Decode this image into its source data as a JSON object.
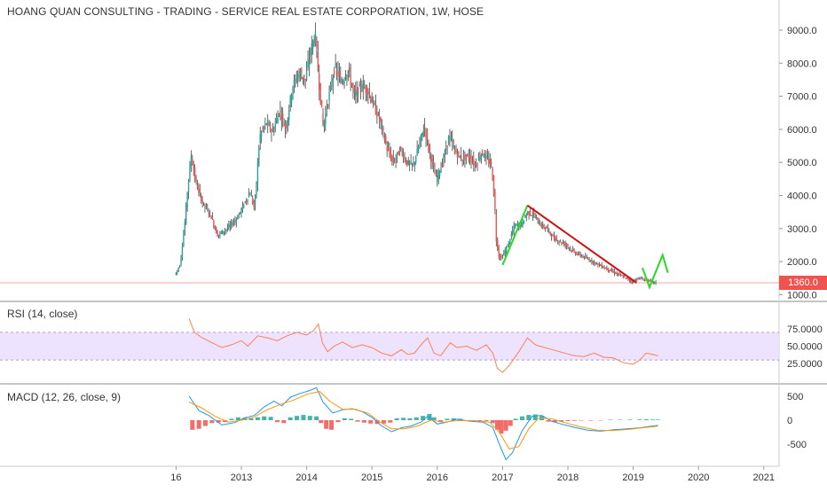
{
  "chart_data": {
    "type": "candlestick",
    "title": "HOANG QUAN CONSULTING - TRADING - SERVICE REAL ESTATE CORPORATION, 1W, HOSE",
    "price_axis": {
      "ticks": [
        "9000.0",
        "8000.0",
        "7000.0",
        "6000.0",
        "5000.0",
        "4000.0",
        "3000.0",
        "2000.0",
        "1000.0"
      ],
      "tick_values": [
        9000,
        8000,
        7000,
        6000,
        5000,
        4000,
        3000,
        2000,
        1000
      ],
      "ylim": [
        1000,
        9500
      ]
    },
    "last_price": {
      "label": "1360.0",
      "value": 1360,
      "color": "#ef5350"
    },
    "x_axis": {
      "ticks": [
        "16",
        "2013",
        "2014",
        "2015",
        "2016",
        "2017",
        "2018",
        "2019",
        "2020",
        "2021"
      ],
      "tick_values": [
        2012.0,
        2013,
        2014,
        2015,
        2016,
        2017,
        2018,
        2019,
        2020,
        2021
      ]
    },
    "price_path": [
      [
        2012.0,
        1600
      ],
      [
        2012.08,
        1900
      ],
      [
        2012.15,
        3100
      ],
      [
        2012.2,
        4300
      ],
      [
        2012.25,
        5200
      ],
      [
        2012.32,
        4400
      ],
      [
        2012.42,
        3800
      ],
      [
        2012.55,
        3400
      ],
      [
        2012.65,
        2800
      ],
      [
        2012.8,
        3000
      ],
      [
        2012.95,
        3300
      ],
      [
        2013.05,
        3700
      ],
      [
        2013.15,
        4100
      ],
      [
        2013.22,
        3600
      ],
      [
        2013.3,
        5800
      ],
      [
        2013.4,
        6200
      ],
      [
        2013.5,
        5900
      ],
      [
        2013.6,
        6600
      ],
      [
        2013.7,
        6000
      ],
      [
        2013.8,
        7300
      ],
      [
        2013.9,
        7700
      ],
      [
        2014.0,
        7500
      ],
      [
        2014.07,
        8300
      ],
      [
        2014.15,
        8900
      ],
      [
        2014.2,
        7600
      ],
      [
        2014.27,
        6100
      ],
      [
        2014.35,
        6900
      ],
      [
        2014.45,
        7900
      ],
      [
        2014.55,
        7400
      ],
      [
        2014.65,
        7800
      ],
      [
        2014.75,
        7000
      ],
      [
        2014.85,
        7300
      ],
      [
        2014.95,
        7200
      ],
      [
        2015.05,
        6700
      ],
      [
        2015.15,
        6200
      ],
      [
        2015.25,
        5400
      ],
      [
        2015.35,
        5000
      ],
      [
        2015.45,
        5400
      ],
      [
        2015.55,
        5000
      ],
      [
        2015.65,
        4900
      ],
      [
        2015.75,
        5600
      ],
      [
        2015.82,
        6100
      ],
      [
        2015.9,
        5300
      ],
      [
        2016.0,
        4500
      ],
      [
        2016.1,
        5000
      ],
      [
        2016.2,
        5800
      ],
      [
        2016.3,
        5300
      ],
      [
        2016.4,
        5100
      ],
      [
        2016.5,
        5200
      ],
      [
        2016.6,
        4900
      ],
      [
        2016.7,
        5300
      ],
      [
        2016.78,
        5100
      ],
      [
        2016.85,
        4900
      ],
      [
        2016.9,
        3700
      ],
      [
        2016.92,
        2700
      ],
      [
        2016.96,
        2200
      ],
      [
        2017.0,
        2100
      ],
      [
        2017.1,
        2500
      ],
      [
        2017.2,
        3100
      ],
      [
        2017.3,
        3100
      ],
      [
        2017.4,
        3500
      ],
      [
        2017.5,
        3400
      ],
      [
        2017.6,
        3100
      ],
      [
        2017.7,
        3000
      ],
      [
        2017.8,
        2700
      ],
      [
        2017.9,
        2600
      ],
      [
        2018.0,
        2500
      ],
      [
        2018.1,
        2300
      ],
      [
        2018.2,
        2200
      ],
      [
        2018.3,
        2100
      ],
      [
        2018.4,
        2000
      ],
      [
        2018.5,
        1900
      ],
      [
        2018.6,
        1800
      ],
      [
        2018.7,
        1700
      ],
      [
        2018.8,
        1600
      ],
      [
        2018.9,
        1500
      ],
      [
        2019.0,
        1400
      ],
      [
        2019.1,
        1500
      ],
      [
        2019.2,
        1450
      ],
      [
        2019.3,
        1400
      ],
      [
        2019.35,
        1360
      ]
    ],
    "annotations": {
      "green_trend": [
        [
          2017.0,
          1900
        ],
        [
          2017.38,
          3700
        ]
      ],
      "red_trend": [
        [
          2017.38,
          3700
        ],
        [
          2019.05,
          1360
        ]
      ],
      "green_arrow": [
        [
          2019.25,
          1600
        ],
        [
          2019.45,
          2200
        ]
      ]
    },
    "rsi": {
      "label": "RSI (14, close)",
      "ticks": [
        "75.0000",
        "50.0000",
        "25.0000"
      ],
      "tick_values": [
        75,
        50,
        25
      ],
      "band": [
        30,
        70
      ],
      "ylim": [
        10,
        95
      ],
      "values": [
        [
          2012.2,
          90
        ],
        [
          2012.28,
          70
        ],
        [
          2012.4,
          62
        ],
        [
          2012.55,
          55
        ],
        [
          2012.7,
          48
        ],
        [
          2012.85,
          52
        ],
        [
          2013.0,
          58
        ],
        [
          2013.1,
          50
        ],
        [
          2013.25,
          65
        ],
        [
          2013.4,
          62
        ],
        [
          2013.55,
          58
        ],
        [
          2013.7,
          65
        ],
        [
          2013.85,
          70
        ],
        [
          2014.0,
          66
        ],
        [
          2014.1,
          72
        ],
        [
          2014.18,
          82
        ],
        [
          2014.24,
          55
        ],
        [
          2014.32,
          42
        ],
        [
          2014.42,
          50
        ],
        [
          2014.55,
          56
        ],
        [
          2014.7,
          48
        ],
        [
          2014.85,
          52
        ],
        [
          2015.0,
          48
        ],
        [
          2015.15,
          40
        ],
        [
          2015.3,
          36
        ],
        [
          2015.45,
          45
        ],
        [
          2015.55,
          38
        ],
        [
          2015.65,
          40
        ],
        [
          2015.78,
          55
        ],
        [
          2015.85,
          62
        ],
        [
          2015.95,
          40
        ],
        [
          2016.05,
          36
        ],
        [
          2016.2,
          55
        ],
        [
          2016.3,
          48
        ],
        [
          2016.45,
          50
        ],
        [
          2016.6,
          44
        ],
        [
          2016.75,
          52
        ],
        [
          2016.85,
          40
        ],
        [
          2016.92,
          18
        ],
        [
          2017.0,
          12
        ],
        [
          2017.1,
          22
        ],
        [
          2017.25,
          42
        ],
        [
          2017.38,
          62
        ],
        [
          2017.5,
          52
        ],
        [
          2017.65,
          48
        ],
        [
          2017.8,
          44
        ],
        [
          2017.95,
          40
        ],
        [
          2018.1,
          36
        ],
        [
          2018.25,
          35
        ],
        [
          2018.4,
          40
        ],
        [
          2018.55,
          34
        ],
        [
          2018.7,
          33
        ],
        [
          2018.85,
          26
        ],
        [
          2019.0,
          24
        ],
        [
          2019.1,
          30
        ],
        [
          2019.2,
          40
        ],
        [
          2019.3,
          38
        ],
        [
          2019.38,
          36
        ]
      ]
    },
    "macd": {
      "label": "MACD (12, 26, close, 9)",
      "ticks": [
        "500",
        "0",
        "-500"
      ],
      "tick_values": [
        500,
        0,
        -500
      ],
      "ylim": [
        -900,
        900
      ],
      "macd_line": [
        [
          2012.2,
          500
        ],
        [
          2012.35,
          200
        ],
        [
          2012.5,
          100
        ],
        [
          2012.7,
          -100
        ],
        [
          2012.9,
          -50
        ],
        [
          2013.05,
          50
        ],
        [
          2013.2,
          100
        ],
        [
          2013.35,
          280
        ],
        [
          2013.5,
          400
        ],
        [
          2013.62,
          300
        ],
        [
          2013.75,
          480
        ],
        [
          2013.9,
          560
        ],
        [
          2014.05,
          620
        ],
        [
          2014.15,
          680
        ],
        [
          2014.25,
          380
        ],
        [
          2014.4,
          150
        ],
        [
          2014.55,
          220
        ],
        [
          2014.7,
          240
        ],
        [
          2014.85,
          180
        ],
        [
          2015.0,
          60
        ],
        [
          2015.15,
          -120
        ],
        [
          2015.3,
          -240
        ],
        [
          2015.45,
          -160
        ],
        [
          2015.6,
          -120
        ],
        [
          2015.75,
          -40
        ],
        [
          2015.85,
          80
        ],
        [
          2016.0,
          -80
        ],
        [
          2016.15,
          -40
        ],
        [
          2016.3,
          20
        ],
        [
          2016.5,
          -20
        ],
        [
          2016.7,
          -40
        ],
        [
          2016.85,
          -150
        ],
        [
          2016.95,
          -500
        ],
        [
          2017.05,
          -820
        ],
        [
          2017.15,
          -680
        ],
        [
          2017.3,
          -220
        ],
        [
          2017.45,
          80
        ],
        [
          2017.6,
          100
        ],
        [
          2017.75,
          -20
        ],
        [
          2017.9,
          -80
        ],
        [
          2018.1,
          -150
        ],
        [
          2018.3,
          -210
        ],
        [
          2018.5,
          -230
        ],
        [
          2018.7,
          -200
        ],
        [
          2018.9,
          -180
        ],
        [
          2019.1,
          -160
        ],
        [
          2019.25,
          -130
        ],
        [
          2019.38,
          -110
        ]
      ],
      "signal_line": [
        [
          2012.2,
          380
        ],
        [
          2012.4,
          250
        ],
        [
          2012.6,
          80
        ],
        [
          2012.8,
          -40
        ],
        [
          2013.0,
          0
        ],
        [
          2013.2,
          70
        ],
        [
          2013.4,
          220
        ],
        [
          2013.6,
          330
        ],
        [
          2013.8,
          420
        ],
        [
          2014.0,
          540
        ],
        [
          2014.2,
          600
        ],
        [
          2014.35,
          400
        ],
        [
          2014.55,
          230
        ],
        [
          2014.75,
          230
        ],
        [
          2014.95,
          140
        ],
        [
          2015.1,
          -20
        ],
        [
          2015.3,
          -180
        ],
        [
          2015.5,
          -180
        ],
        [
          2015.7,
          -120
        ],
        [
          2015.9,
          0
        ],
        [
          2016.1,
          -40
        ],
        [
          2016.3,
          -10
        ],
        [
          2016.55,
          -10
        ],
        [
          2016.8,
          -40
        ],
        [
          2016.95,
          -250
        ],
        [
          2017.1,
          -600
        ],
        [
          2017.25,
          -550
        ],
        [
          2017.4,
          -180
        ],
        [
          2017.55,
          40
        ],
        [
          2017.75,
          30
        ],
        [
          2017.95,
          -50
        ],
        [
          2018.2,
          -140
        ],
        [
          2018.45,
          -210
        ],
        [
          2018.7,
          -215
        ],
        [
          2018.95,
          -190
        ],
        [
          2019.2,
          -150
        ],
        [
          2019.38,
          -125
        ]
      ],
      "histogram": [
        [
          2012.25,
          -200
        ],
        [
          2012.35,
          -180
        ],
        [
          2012.45,
          -120
        ],
        [
          2012.55,
          -60
        ],
        [
          2012.65,
          -50
        ],
        [
          2012.75,
          -40
        ],
        [
          2012.85,
          30
        ],
        [
          2012.95,
          60
        ],
        [
          2013.05,
          50
        ],
        [
          2013.15,
          40
        ],
        [
          2013.25,
          60
        ],
        [
          2013.35,
          80
        ],
        [
          2013.45,
          70
        ],
        [
          2013.55,
          -40
        ],
        [
          2013.65,
          -60
        ],
        [
          2013.75,
          60
        ],
        [
          2013.85,
          90
        ],
        [
          2013.95,
          110
        ],
        [
          2014.05,
          90
        ],
        [
          2014.15,
          80
        ],
        [
          2014.22,
          -60
        ],
        [
          2014.3,
          -180
        ],
        [
          2014.38,
          -200
        ],
        [
          2014.48,
          -40
        ],
        [
          2014.58,
          40
        ],
        [
          2014.68,
          30
        ],
        [
          2014.78,
          -30
        ],
        [
          2014.88,
          -50
        ],
        [
          2014.98,
          -70
        ],
        [
          2015.08,
          -80
        ],
        [
          2015.18,
          -70
        ],
        [
          2015.28,
          -50
        ],
        [
          2015.38,
          40
        ],
        [
          2015.48,
          50
        ],
        [
          2015.58,
          40
        ],
        [
          2015.68,
          60
        ],
        [
          2015.78,
          90
        ],
        [
          2015.88,
          130
        ],
        [
          2015.95,
          60
        ],
        [
          2016.05,
          -40
        ],
        [
          2016.15,
          30
        ],
        [
          2016.25,
          40
        ],
        [
          2016.35,
          30
        ],
        [
          2016.45,
          -20
        ],
        [
          2016.55,
          -25
        ],
        [
          2016.65,
          -30
        ],
        [
          2016.75,
          -20
        ],
        [
          2016.85,
          -60
        ],
        [
          2016.92,
          -200
        ],
        [
          2016.98,
          -280
        ],
        [
          2017.05,
          -220
        ],
        [
          2017.12,
          -120
        ],
        [
          2017.2,
          30
        ],
        [
          2017.3,
          80
        ],
        [
          2017.4,
          110
        ],
        [
          2017.5,
          120
        ],
        [
          2017.6,
          90
        ],
        [
          2017.7,
          -30
        ],
        [
          2017.8,
          -40
        ],
        [
          2017.9,
          -30
        ],
        [
          2018.0,
          -20
        ],
        [
          2018.1,
          -15
        ],
        [
          2018.2,
          -10
        ],
        [
          2018.35,
          -10
        ],
        [
          2018.5,
          -8
        ],
        [
          2018.65,
          10
        ],
        [
          2018.8,
          10
        ],
        [
          2018.95,
          12
        ],
        [
          2019.1,
          15
        ],
        [
          2019.2,
          18
        ],
        [
          2019.3,
          14
        ],
        [
          2019.38,
          12
        ]
      ],
      "colors": {
        "macd": "#2196f3",
        "signal": "#ff9800",
        "hist_up": "#26a69a",
        "hist_down": "#ef5350"
      }
    },
    "colors": {
      "up": "#26a69a",
      "down": "#ef5350",
      "wick": "#333333",
      "rsi": "#ff7f50",
      "rsi_band": "#e7d7ff",
      "trend_green": "#22dd22",
      "trend_red": "#d01010"
    }
  }
}
